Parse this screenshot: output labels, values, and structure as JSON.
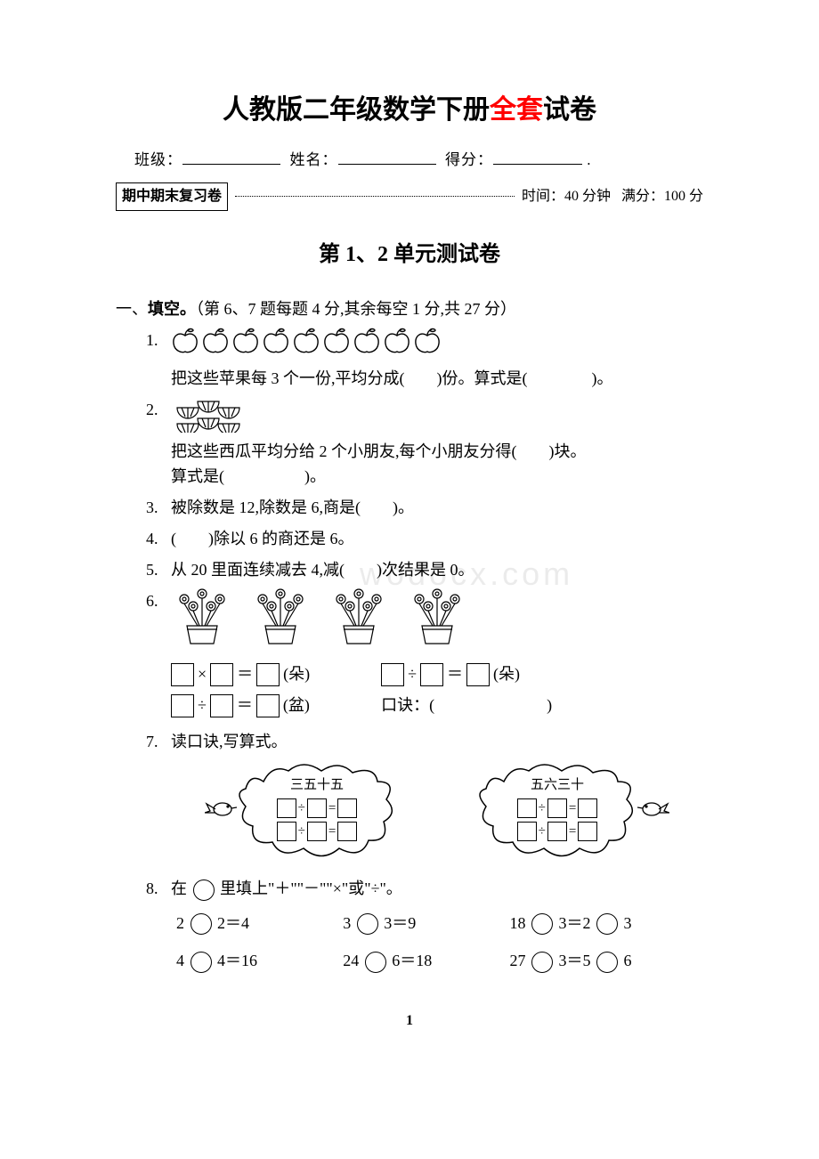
{
  "title_parts": {
    "p1": "人教版二年级数学下册",
    "p2": "全套",
    "p3": "试卷"
  },
  "info": {
    "class_label": "班级：",
    "name_label": "姓名：",
    "score_label": "得分："
  },
  "tag": {
    "box": "期中期末复习卷",
    "time": "时间：40 分钟",
    "full": "满分：100 分"
  },
  "subtitle": "第 1、2 单元测试卷",
  "section1": {
    "num": "一、",
    "title": "填空。",
    "note": "（第 6、7 题每题 4 分,其余每空 1 分,共 27 分）"
  },
  "q1": {
    "n": "1.",
    "apple_count": 9,
    "text": "把这些苹果每 3 个一份,平均分成(　　)份。算式是(　　　　)。"
  },
  "q2": {
    "n": "2.",
    "text1": "把这些西瓜平均分给 2 个小朋友,每个小朋友分得(　　)块。",
    "text2": "算式是(　　　　　)。"
  },
  "q3": {
    "n": "3.",
    "text": "被除数是 12,除数是 6,商是(　　)。"
  },
  "q4": {
    "n": "4.",
    "text": "(　　)除以 6 的商还是 6。"
  },
  "q5": {
    "n": "5.",
    "text": "从 20 里面连续减去 4,减(　　)次结果是 0。"
  },
  "q6": {
    "n": "6.",
    "unit_flower": "(朵)",
    "unit_pot": "(盆)",
    "koujue": "口诀：(　　　　　　　)"
  },
  "q7": {
    "n": "7.",
    "text": "读口诀,写算式。",
    "cloud1": "三五十五",
    "cloud2": "五六三十"
  },
  "q8": {
    "n": "8.",
    "text": "在 ○ 里填上\"＋\"\"－\"\"×\"或\"÷\"。",
    "cells": [
      "2 ○ 2＝4",
      "3 ○ 3＝9",
      "18 ○ 3＝2 ○ 3",
      "4 ○ 4＝16",
      "24 ○ 6＝18",
      "27 ○ 3＝5 ○ 6"
    ]
  },
  "page_num": "1",
  "colors": {
    "red": "#ff0000",
    "text": "#000000",
    "bg": "#ffffff"
  }
}
